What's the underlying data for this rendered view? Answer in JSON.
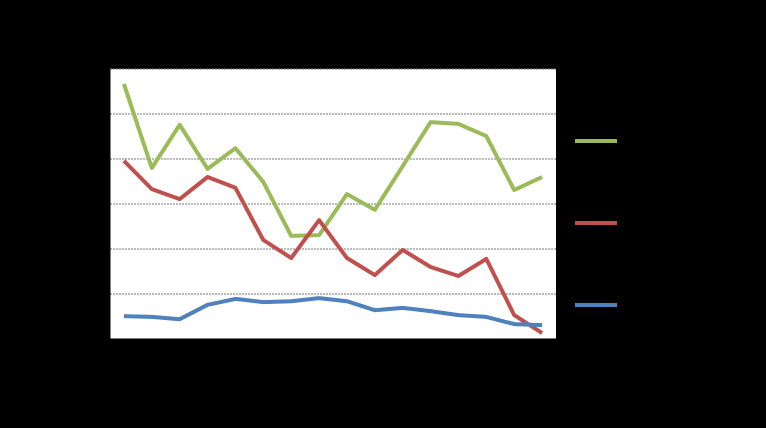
{
  "chart_data": {
    "type": "line",
    "categories": [
      null,
      null,
      null,
      null,
      null,
      null,
      null,
      null,
      null,
      null,
      null,
      null,
      null,
      null,
      null,
      null
    ],
    "series": [
      {
        "color": "#9bbb59",
        "values": [
          5.67,
          3.8,
          4.76,
          3.78,
          4.24,
          3.49,
          2.29,
          2.31,
          3.22,
          2.87,
          3.84,
          4.82,
          4.78,
          4.51,
          3.31,
          3.6
        ]
      },
      {
        "color": "#c0504d",
        "values": [
          3.96,
          3.33,
          3.11,
          3.6,
          3.36,
          2.2,
          1.8,
          2.64,
          1.8,
          1.42,
          1.98,
          1.6,
          1.4,
          1.78,
          0.53,
          0.13
        ]
      },
      {
        "color": "#4f81bd",
        "values": [
          0.51,
          0.49,
          0.44,
          0.76,
          0.89,
          0.82,
          0.84,
          0.91,
          0.84,
          0.64,
          0.69,
          0.62,
          0.53,
          0.49,
          0.33,
          0.31
        ]
      }
    ],
    "ylim": [
      0,
      6
    ],
    "yticks": [
      0,
      1,
      2,
      3,
      4,
      5,
      6
    ],
    "grid": true,
    "legend": "right"
  }
}
